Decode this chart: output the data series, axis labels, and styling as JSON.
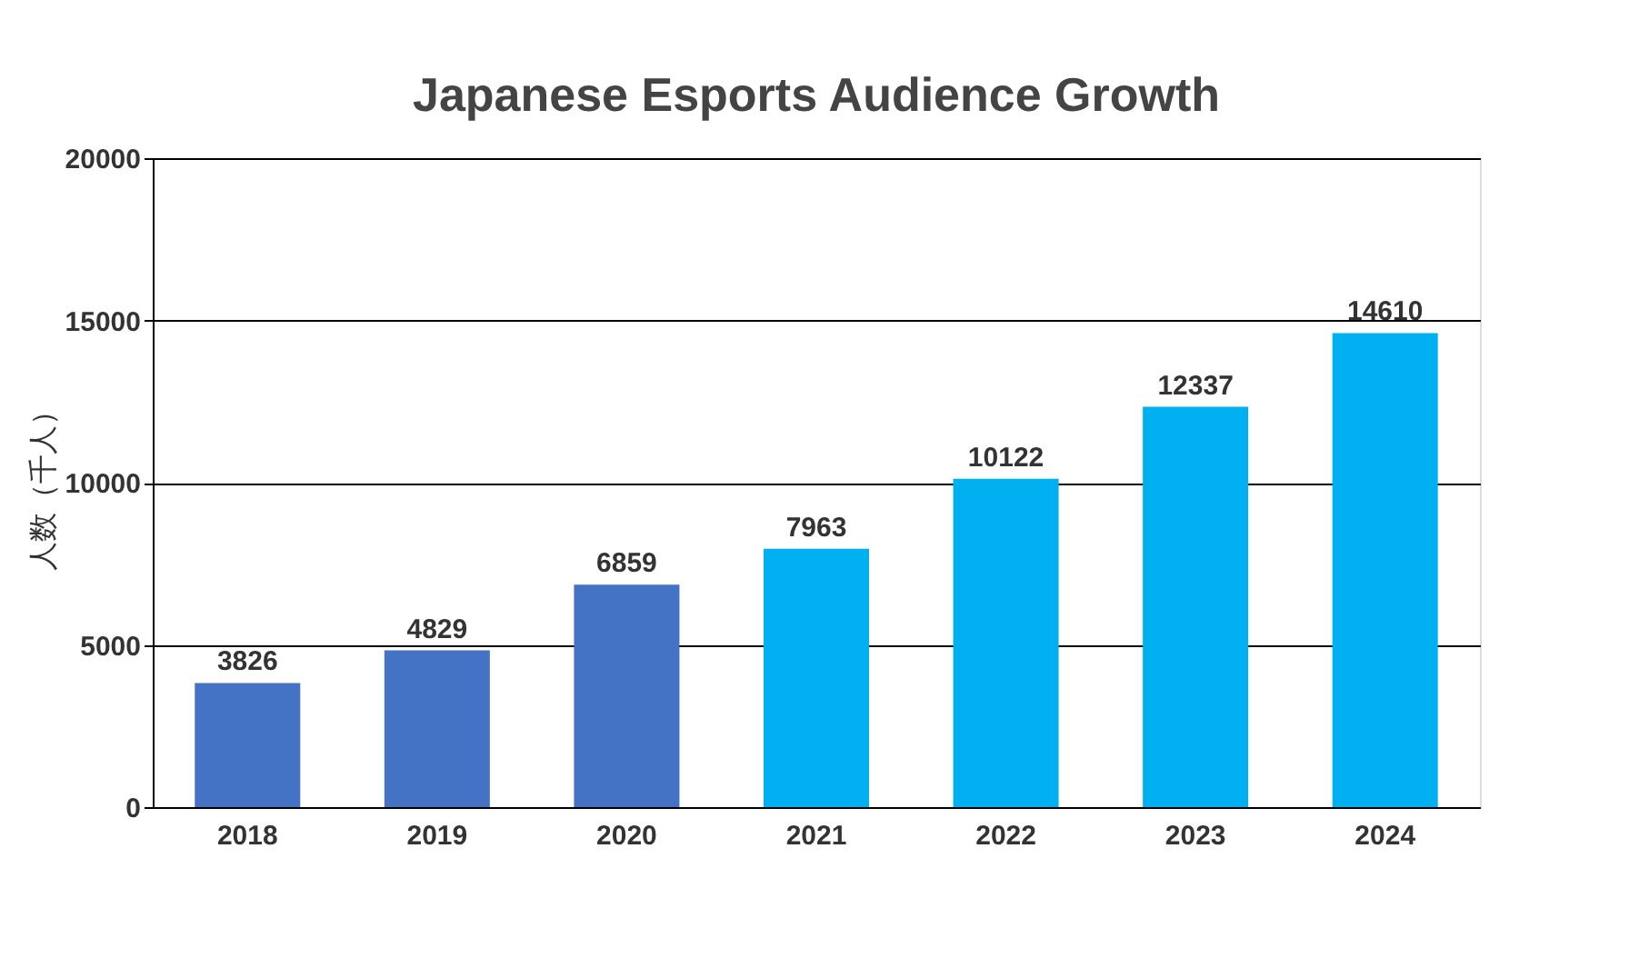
{
  "chart_data": {
    "type": "bar",
    "title": "Japanese Esports Audience Growth",
    "ylabel": "人数（千人）",
    "categories": [
      "2018",
      "2019",
      "2020",
      "2021",
      "2022",
      "2023",
      "2024"
    ],
    "values": [
      3826,
      4829,
      6859,
      7963,
      10122,
      12337,
      14610
    ],
    "colors": [
      "#4472c4",
      "#4472c4",
      "#4472c4",
      "#00b0f0",
      "#00b0f0",
      "#00b0f0",
      "#00b0f0"
    ],
    "ylim": [
      0,
      20000
    ],
    "yticks": [
      0,
      5000,
      10000,
      15000,
      20000
    ],
    "grid": "y",
    "data_labels": true
  }
}
